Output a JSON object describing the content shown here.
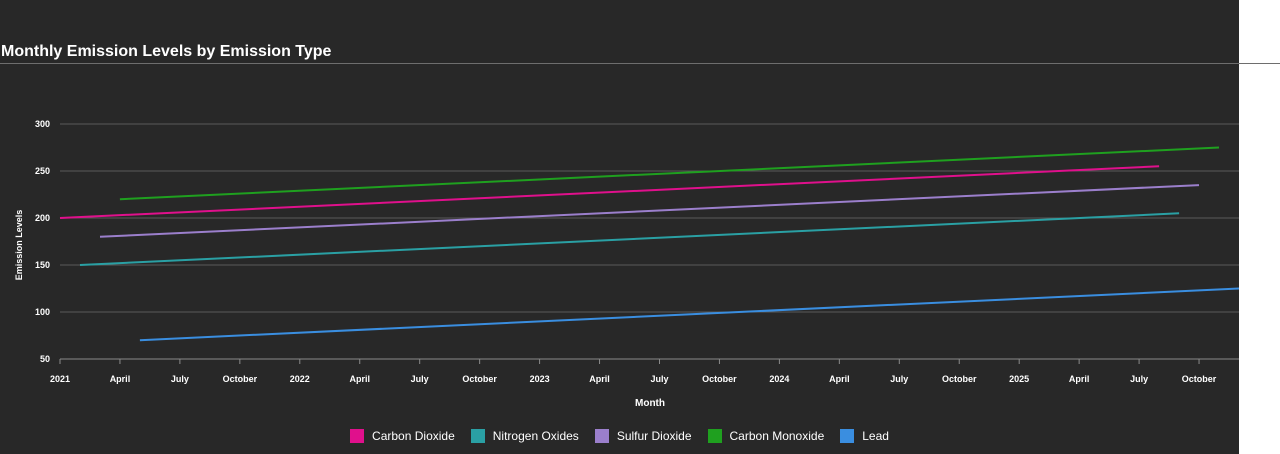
{
  "chart_data": {
    "type": "line",
    "title": "Monthly Emission Levels by Emission Type",
    "xlabel": "Month",
    "ylabel": "Emission Levels",
    "ylim": [
      50,
      300
    ],
    "yticks": [
      50,
      100,
      150,
      200,
      250,
      300
    ],
    "grid": true,
    "legend": "bottom",
    "x_range": [
      "2021-01",
      "2025-12"
    ],
    "xticks": [
      {
        "date": "2021-01",
        "label": "2021"
      },
      {
        "date": "2021-04",
        "label": "April"
      },
      {
        "date": "2021-07",
        "label": "July"
      },
      {
        "date": "2021-10",
        "label": "October"
      },
      {
        "date": "2022-01",
        "label": "2022"
      },
      {
        "date": "2022-04",
        "label": "April"
      },
      {
        "date": "2022-07",
        "label": "July"
      },
      {
        "date": "2022-10",
        "label": "October"
      },
      {
        "date": "2023-01",
        "label": "2023"
      },
      {
        "date": "2023-04",
        "label": "April"
      },
      {
        "date": "2023-07",
        "label": "July"
      },
      {
        "date": "2023-10",
        "label": "October"
      },
      {
        "date": "2024-01",
        "label": "2024"
      },
      {
        "date": "2024-04",
        "label": "April"
      },
      {
        "date": "2024-07",
        "label": "July"
      },
      {
        "date": "2024-10",
        "label": "October"
      },
      {
        "date": "2025-01",
        "label": "2025"
      },
      {
        "date": "2025-04",
        "label": "April"
      },
      {
        "date": "2025-07",
        "label": "July"
      },
      {
        "date": "2025-10",
        "label": "October"
      }
    ],
    "series": [
      {
        "name": "Carbon Dioxide",
        "color": "#e0108c",
        "points": [
          {
            "x": "2021-01",
            "y": 200
          },
          {
            "x": "2025-08",
            "y": 255
          }
        ]
      },
      {
        "name": "Nitrogen Oxides",
        "color": "#2aa0a4",
        "points": [
          {
            "x": "2021-02",
            "y": 150
          },
          {
            "x": "2025-09",
            "y": 205
          }
        ]
      },
      {
        "name": "Sulfur Dioxide",
        "color": "#9b7fcc",
        "points": [
          {
            "x": "2021-03",
            "y": 180
          },
          {
            "x": "2025-10",
            "y": 235
          }
        ]
      },
      {
        "name": "Carbon Monoxide",
        "color": "#1fa01f",
        "points": [
          {
            "x": "2021-04",
            "y": 220
          },
          {
            "x": "2025-11",
            "y": 275
          }
        ]
      },
      {
        "name": "Lead",
        "color": "#3a8ee0",
        "points": [
          {
            "x": "2021-05",
            "y": 70
          },
          {
            "x": "2025-12",
            "y": 125
          }
        ]
      }
    ]
  }
}
